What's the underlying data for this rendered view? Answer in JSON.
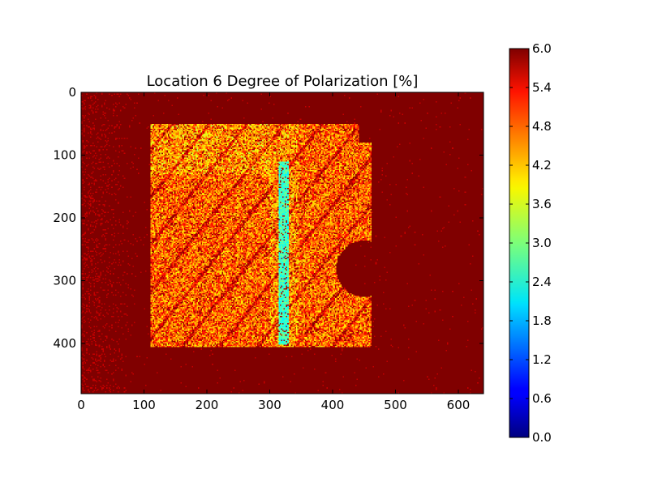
{
  "chart_data": {
    "type": "heatmap",
    "title": "Location 6 Degree of Polarization [%]",
    "xlabel": "",
    "ylabel": "",
    "x_ticks": [
      0,
      100,
      200,
      300,
      400,
      500,
      600
    ],
    "y_ticks": [
      0,
      100,
      200,
      300,
      400
    ],
    "xlim": [
      0,
      640
    ],
    "ylim": [
      480,
      0
    ],
    "grid": false,
    "colormap": "jet",
    "colorbar": {
      "min": 0.0,
      "max": 6.0,
      "ticks": [
        "0.0",
        "0.6",
        "1.2",
        "1.8",
        "2.4",
        "3.0",
        "3.6",
        "4.2",
        "4.8",
        "5.4",
        "6.0"
      ]
    },
    "field": {
      "background_value": 6.0,
      "illuminated_region": {
        "x_range": [
          110,
          460
        ],
        "y_range": [
          50,
          405
        ],
        "typical_value": 4.6
      },
      "low_value_stripe": {
        "x_range": [
          313,
          328
        ],
        "y_range": [
          110,
          400
        ],
        "value": 2.6
      },
      "dark_notch": {
        "center": [
          450,
          280
        ],
        "radius": 45,
        "value": 6.0
      }
    }
  }
}
